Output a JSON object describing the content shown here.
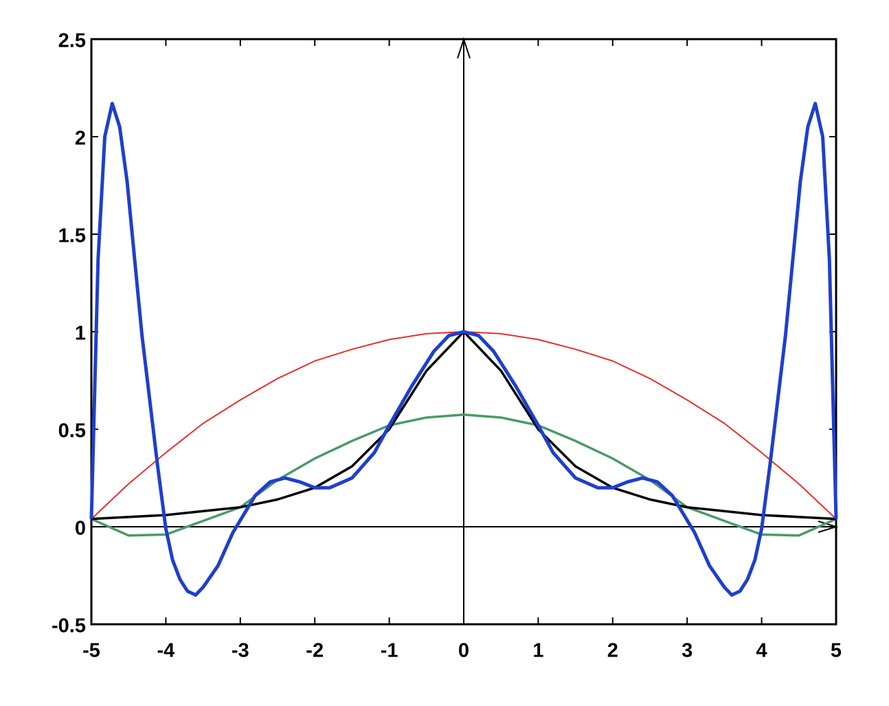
{
  "chart_data": {
    "type": "line",
    "xlim": [
      -5,
      5
    ],
    "ylim": [
      -0.5,
      2.5
    ],
    "xticks": [
      -5,
      -4,
      -3,
      -2,
      -1,
      0,
      1,
      2,
      3,
      4,
      5
    ],
    "yticks": [
      -0.5,
      0,
      0.5,
      1,
      1.5,
      2,
      2.5
    ],
    "series": [
      {
        "color": "#e8302a",
        "width": 2,
        "x": [
          -5,
          -4.5,
          -4,
          -3.5,
          -3,
          -2.5,
          -2,
          -1.5,
          -1,
          -0.5,
          0,
          0.5,
          1,
          1.5,
          2,
          2.5,
          3,
          3.5,
          4,
          4.5,
          5
        ],
        "values": [
          0.04,
          0.22,
          0.38,
          0.53,
          0.65,
          0.76,
          0.85,
          0.91,
          0.96,
          0.99,
          1,
          0.99,
          0.96,
          0.91,
          0.85,
          0.76,
          0.65,
          0.53,
          0.38,
          0.22,
          0.04
        ]
      },
      {
        "color": "#4a9a6a",
        "width": 3.5,
        "x": [
          -5,
          -4.5,
          -4,
          -3.5,
          -3,
          -2.5,
          -2,
          -1.5,
          -1,
          -0.5,
          0,
          0.5,
          1,
          1.5,
          2,
          2.5,
          3,
          3.5,
          4,
          4.5,
          5
        ],
        "values": [
          0.04,
          -0.045,
          -0.04,
          0.03,
          0.1,
          0.24,
          0.35,
          0.44,
          0.52,
          0.56,
          0.575,
          0.56,
          0.52,
          0.44,
          0.35,
          0.24,
          0.1,
          0.03,
          -0.04,
          -0.045,
          0.04
        ]
      },
      {
        "color": "#000000",
        "width": 3.5,
        "x": [
          -5,
          -4.5,
          -4,
          -3.5,
          -3,
          -2.5,
          -2,
          -1.5,
          -1,
          -0.5,
          0,
          0.5,
          1,
          1.5,
          2,
          2.5,
          3,
          3.5,
          4,
          4.5,
          5
        ],
        "values": [
          0.04,
          0.05,
          0.06,
          0.08,
          0.1,
          0.14,
          0.2,
          0.31,
          0.5,
          0.8,
          1,
          0.8,
          0.5,
          0.31,
          0.2,
          0.14,
          0.1,
          0.08,
          0.06,
          0.05,
          0.04
        ]
      },
      {
        "color": "#1f3fcc",
        "width": 5,
        "x": [
          -5,
          -4.91,
          -4.82,
          -4.72,
          -4.62,
          -4.52,
          -4.32,
          -4.11,
          -4,
          -3.91,
          -3.81,
          -3.71,
          -3.6,
          -3.5,
          -3.3,
          -3.1,
          -2.8,
          -2.6,
          -2.4,
          -2.2,
          -2,
          -1.8,
          -1.5,
          -1.2,
          -1,
          -0.7,
          -0.4,
          -0.2,
          0,
          0.2,
          0.4,
          0.7,
          1,
          1.2,
          1.5,
          1.8,
          2,
          2.2,
          2.4,
          2.6,
          2.8,
          3.1,
          3.3,
          3.5,
          3.6,
          3.71,
          3.81,
          3.91,
          4,
          4.11,
          4.32,
          4.52,
          4.62,
          4.72,
          4.82,
          4.91,
          5
        ],
        "values": [
          0.04,
          1.37,
          2,
          2.17,
          2.05,
          1.77,
          0.98,
          0.31,
          -0.01,
          -0.17,
          -0.27,
          -0.33,
          -0.35,
          -0.31,
          -0.2,
          -0.03,
          0.16,
          0.23,
          0.25,
          0.23,
          0.2,
          0.2,
          0.25,
          0.38,
          0.52,
          0.72,
          0.9,
          0.98,
          1,
          0.98,
          0.9,
          0.72,
          0.52,
          0.38,
          0.25,
          0.2,
          0.2,
          0.23,
          0.25,
          0.23,
          0.16,
          -0.03,
          -0.2,
          -0.31,
          -0.35,
          -0.33,
          -0.27,
          -0.17,
          -0.01,
          0.31,
          0.98,
          1.77,
          2.05,
          2.17,
          2,
          1.37,
          0.04
        ]
      }
    ]
  }
}
